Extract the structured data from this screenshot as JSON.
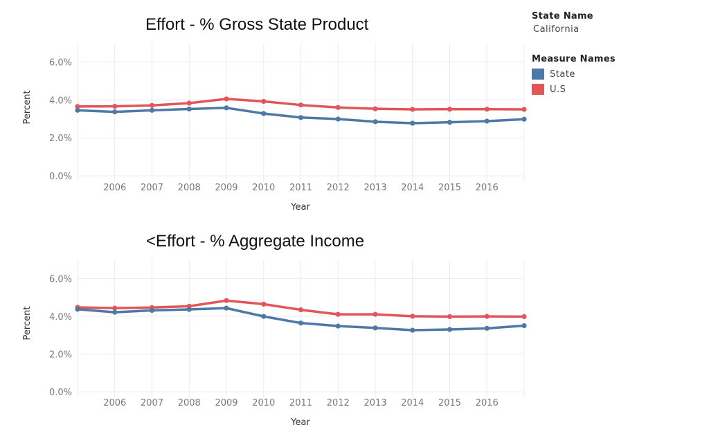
{
  "legend": {
    "state_label": "State Name",
    "state_value": "California",
    "measure_label": "Measure Names",
    "items": [
      {
        "name": "State",
        "color": "#4e79a7"
      },
      {
        "name": "U.S",
        "color": "#e15759"
      }
    ]
  },
  "chart_data": [
    {
      "type": "line",
      "title": "Effort - % Gross State Product",
      "xlabel": "Year",
      "ylabel": "Percent",
      "x": [
        2005,
        2006,
        2007,
        2008,
        2009,
        2010,
        2011,
        2012,
        2013,
        2014,
        2015,
        2016,
        2017
      ],
      "x_tick_labels": [
        "2006",
        "2007",
        "2008",
        "2009",
        "2010",
        "2011",
        "2012",
        "2013",
        "2014",
        "2015",
        "2016"
      ],
      "y_tick_labels": [
        "6.0%",
        "4.0%",
        "2.0%",
        "0.0%"
      ],
      "ylim": [
        0,
        0.07
      ],
      "grid": true,
      "series": [
        {
          "name": "State",
          "color": "#4e79a7",
          "values": [
            0.0345,
            0.0337,
            0.0345,
            0.0352,
            0.0358,
            0.0328,
            0.0307,
            0.0299,
            0.0285,
            0.0277,
            0.0282,
            0.0288,
            0.0298
          ]
        },
        {
          "name": "U.S",
          "color": "#e15759",
          "values": [
            0.0365,
            0.0366,
            0.0371,
            0.0383,
            0.0405,
            0.0392,
            0.0373,
            0.036,
            0.0353,
            0.035,
            0.0351,
            0.0351,
            0.035
          ]
        }
      ]
    },
    {
      "type": "line",
      "title": "<Effort - % Aggregate Income",
      "xlabel": "Year",
      "ylabel": "Percent",
      "x": [
        2005,
        2006,
        2007,
        2008,
        2009,
        2010,
        2011,
        2012,
        2013,
        2014,
        2015,
        2016,
        2017
      ],
      "x_tick_labels": [
        "2006",
        "2007",
        "2008",
        "2009",
        "2010",
        "2011",
        "2012",
        "2013",
        "2014",
        "2015",
        "2016"
      ],
      "y_tick_labels": [
        "6.0%",
        "4.0%",
        "2.0%",
        "0.0%"
      ],
      "ylim": [
        0,
        0.07
      ],
      "grid": true,
      "series": [
        {
          "name": "State",
          "color": "#4e79a7",
          "values": [
            0.0437,
            0.0421,
            0.0431,
            0.0436,
            0.0443,
            0.0399,
            0.0364,
            0.0348,
            0.0338,
            0.0326,
            0.033,
            0.0336,
            0.035
          ]
        },
        {
          "name": "U.S",
          "color": "#e15759",
          "values": [
            0.0447,
            0.0443,
            0.0446,
            0.0453,
            0.0483,
            0.0464,
            0.0434,
            0.041,
            0.041,
            0.04,
            0.0398,
            0.0399,
            0.0398
          ]
        }
      ]
    }
  ]
}
